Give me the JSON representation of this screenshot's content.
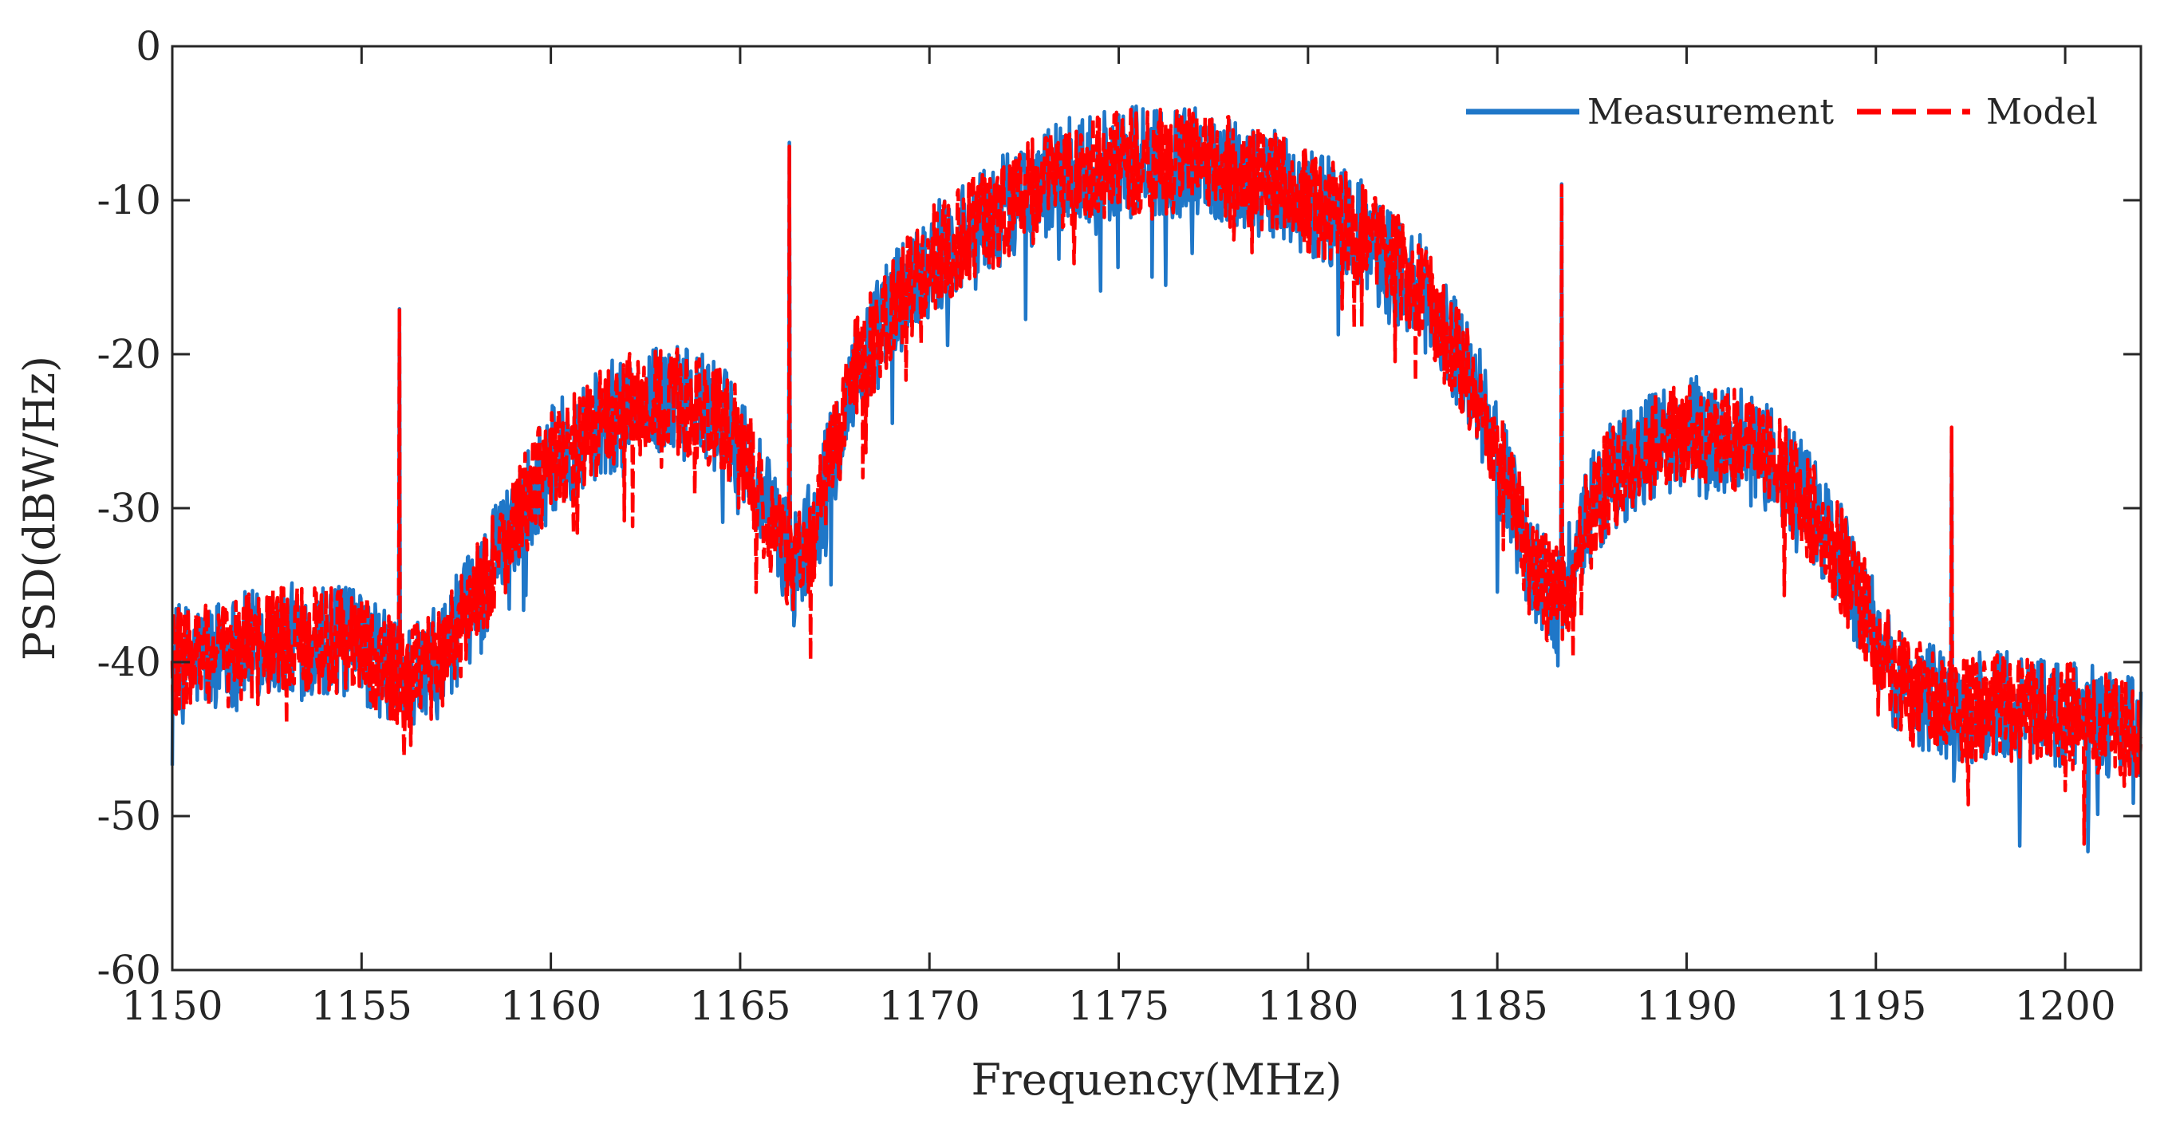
{
  "chart_data": {
    "type": "line",
    "title": "",
    "xlabel": "Frequency(MHz)",
    "ylabel": "PSD(dBW/Hz)",
    "xlim": [
      1150,
      1202
    ],
    "ylim": [
      -60,
      0
    ],
    "xticks": [
      1150,
      1155,
      1160,
      1165,
      1170,
      1175,
      1180,
      1185,
      1190,
      1195,
      1200
    ],
    "yticks": [
      0,
      -10,
      -20,
      -30,
      -40,
      -50,
      -60
    ],
    "grid": false,
    "legend_position": "top-right",
    "envelope": {
      "x": [
        1150,
        1151,
        1152,
        1153,
        1154,
        1155,
        1155.5,
        1156,
        1156.5,
        1157,
        1157.5,
        1158,
        1159,
        1160,
        1161,
        1162,
        1163,
        1164,
        1165,
        1165.5,
        1166,
        1166.5,
        1167,
        1167.5,
        1168,
        1169,
        1170,
        1171,
        1172,
        1173,
        1174,
        1175,
        1176,
        1177,
        1178,
        1179,
        1180,
        1181,
        1182,
        1183,
        1184,
        1184.5,
        1185,
        1185.5,
        1186,
        1186.5,
        1187,
        1187.5,
        1188,
        1189,
        1190,
        1191,
        1192,
        1193,
        1193.5,
        1194,
        1194.5,
        1195,
        1195.5,
        1196,
        1197,
        1198,
        1199,
        1200,
        1201,
        1202
      ],
      "y": [
        -40,
        -39.5,
        -39,
        -38.5,
        -38.5,
        -39,
        -40,
        -41,
        -41,
        -40,
        -38,
        -36,
        -31,
        -27,
        -25,
        -23.5,
        -23,
        -23.5,
        -25.5,
        -29,
        -32,
        -33.5,
        -31,
        -26,
        -21.5,
        -17,
        -14,
        -12,
        -10.5,
        -9,
        -8,
        -7.5,
        -7.5,
        -7.5,
        -8,
        -9,
        -10,
        -11.5,
        -13.5,
        -16,
        -20,
        -23,
        -26.5,
        -30.5,
        -34,
        -36,
        -34,
        -30,
        -28,
        -26,
        -25,
        -25.5,
        -26.5,
        -29,
        -31,
        -33,
        -35.5,
        -38.5,
        -41,
        -42,
        -43,
        -43,
        -43,
        -43.5,
        -44,
        -44.5
      ]
    },
    "spikes": [
      {
        "x": 1156,
        "y": -17
      },
      {
        "x": 1166.3,
        "y": -6.5
      },
      {
        "x": 1186.7,
        "y": -9
      },
      {
        "x": 1197,
        "y": -25
      }
    ],
    "noise_amplitude_db": 3.5,
    "series": [
      {
        "name": "Measurement",
        "color": "#1f77c8",
        "style": "solid"
      },
      {
        "name": "Model",
        "color": "#ff0000",
        "style": "dashed"
      }
    ]
  }
}
